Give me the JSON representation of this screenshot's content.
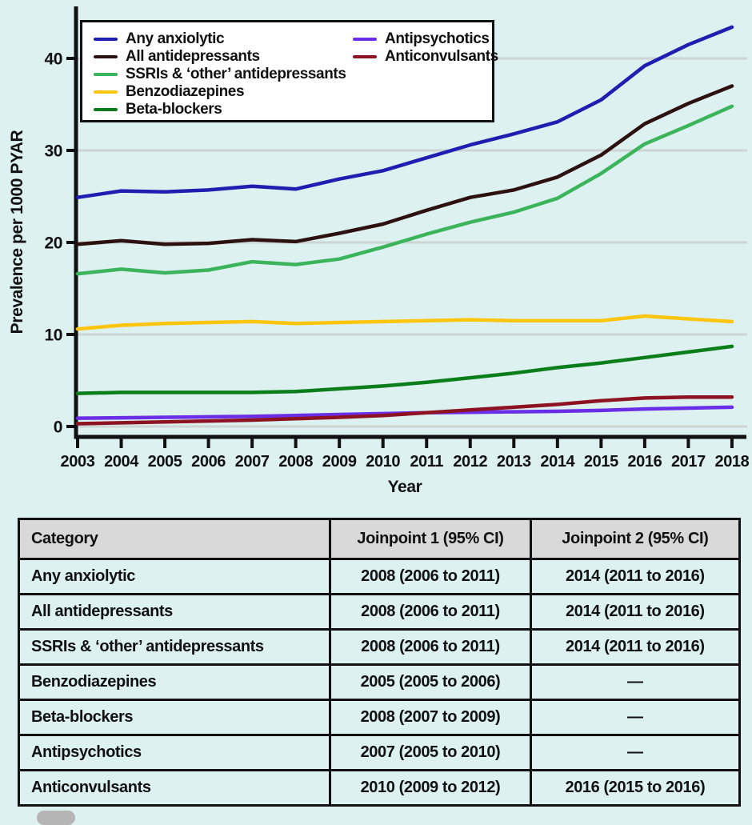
{
  "figure": {
    "background_color": "#ddf1f1",
    "text_color": "#111111",
    "gridline_color": "#cdd4d4",
    "watermark_color": "#b5b5b5"
  },
  "chart_data": {
    "type": "line",
    "title": "",
    "xlabel": "Year",
    "ylabel": "Prevalence per 1000 PYAR",
    "x": [
      2003,
      2004,
      2005,
      2006,
      2007,
      2008,
      2009,
      2010,
      2011,
      2012,
      2013,
      2014,
      2015,
      2016,
      2017,
      2018
    ],
    "yticks": [
      0,
      10,
      20,
      30,
      40
    ],
    "ylim": [
      0,
      45
    ],
    "grid": "horizontal",
    "legend_position": "top-left-two-columns",
    "series": [
      {
        "name": "Any anxiolytic",
        "color": "#1e1eb0",
        "values": [
          24.9,
          25.6,
          25.5,
          25.7,
          26.1,
          25.8,
          26.9,
          27.8,
          29.2,
          30.6,
          31.8,
          33.1,
          35.5,
          39.2,
          41.5,
          43.4
        ]
      },
      {
        "name": "All antidepressants",
        "color": "#2d1111",
        "values": [
          19.8,
          20.2,
          19.8,
          19.9,
          20.3,
          20.1,
          21.0,
          22.0,
          23.5,
          24.9,
          25.7,
          27.1,
          29.5,
          32.9,
          35.1,
          37.0
        ]
      },
      {
        "name": "SSRIs & ‘other’ antidepressants",
        "color": "#3cb45c",
        "values": [
          16.6,
          17.1,
          16.7,
          17.0,
          17.9,
          17.6,
          18.2,
          19.5,
          20.9,
          22.2,
          23.3,
          24.8,
          27.5,
          30.7,
          32.7,
          34.8
        ]
      },
      {
        "name": "Benzodiazepines",
        "color": "#fcc60f",
        "values": [
          10.6,
          11.0,
          11.2,
          11.3,
          11.4,
          11.2,
          11.3,
          11.4,
          11.5,
          11.6,
          11.5,
          11.5,
          11.5,
          12.0,
          11.7,
          11.4
        ]
      },
      {
        "name": "Beta-blockers",
        "color": "#0b7e1b",
        "values": [
          3.6,
          3.7,
          3.7,
          3.7,
          3.7,
          3.8,
          4.1,
          4.4,
          4.8,
          5.3,
          5.8,
          6.4,
          6.9,
          7.5,
          8.1,
          8.7
        ]
      },
      {
        "name": "Antipsychotics",
        "color": "#6a2ee6",
        "values": [
          0.9,
          0.95,
          1.0,
          1.05,
          1.1,
          1.2,
          1.3,
          1.4,
          1.5,
          1.55,
          1.6,
          1.65,
          1.75,
          1.9,
          2.0,
          2.1
        ]
      },
      {
        "name": "Anticonvulsants",
        "color": "#8e1322",
        "values": [
          0.3,
          0.4,
          0.5,
          0.6,
          0.7,
          0.85,
          1.0,
          1.2,
          1.5,
          1.8,
          2.1,
          2.4,
          2.8,
          3.1,
          3.2,
          3.2
        ]
      }
    ]
  },
  "table": {
    "header_bg": "#d9d9d9",
    "headers": [
      "Category",
      "Joinpoint 1 (95% CI)",
      "Joinpoint 2 (95% CI)"
    ],
    "rows": [
      [
        "Any anxiolytic",
        "2008 (2006 to 2011)",
        "2014 (2011 to 2016)"
      ],
      [
        "All antidepressants",
        "2008 (2006 to 2011)",
        "2014 (2011 to 2016)"
      ],
      [
        "SSRIs & ‘other’ antidepressants",
        "2008 (2006 to 2011)",
        "2014 (2011 to 2016)"
      ],
      [
        "Benzodiazepines",
        "2005 (2005 to 2006)",
        "—"
      ],
      [
        "Beta-blockers",
        "2008 (2007 to 2009)",
        "—"
      ],
      [
        "Antipsychotics",
        "2007 (2005 to 2010)",
        "—"
      ],
      [
        "Anticonvulsants",
        "2010 (2009 to 2012)",
        "2016 (2015 to 2016)"
      ]
    ]
  }
}
